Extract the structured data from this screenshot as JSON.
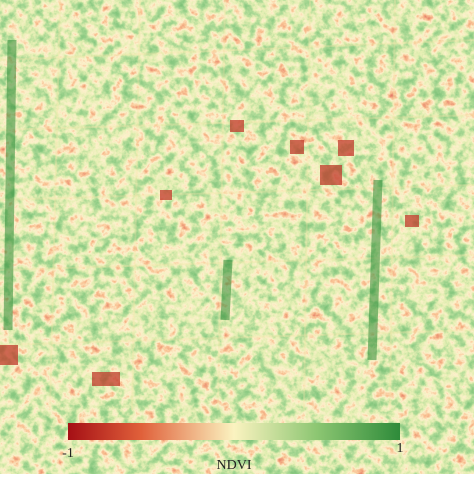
{
  "colorbar": {
    "min": -1,
    "max": 1,
    "label": "NDVI"
  }
}
